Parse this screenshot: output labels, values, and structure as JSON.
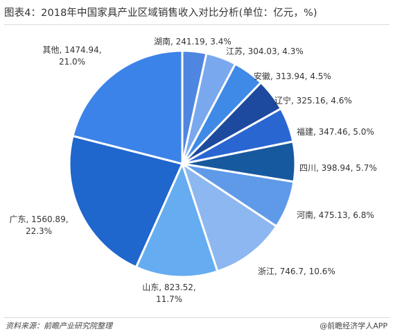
{
  "title": "图表4：2018年中国家具产业区域销售收入对比分析(单位：亿元，%)",
  "source": "资料来源：前瞻产业研究院整理",
  "brand": "@前瞻经济学人APP",
  "chart_data": {
    "type": "pie",
    "title": "图表4：2018年中国家具产业区域销售收入对比分析(单位：亿元，%)",
    "unit": "亿元",
    "start": "12 o'clock",
    "direction": "clockwise",
    "slices": [
      {
        "label": "湖南",
        "value": 241.19,
        "percent": "3.4%",
        "color": "#4f86e0"
      },
      {
        "label": "江苏",
        "value": 304.03,
        "percent": "4.3%",
        "color": "#7aa8ee"
      },
      {
        "label": "安徽",
        "value": 313.94,
        "percent": "4.5%",
        "color": "#3f8ae6"
      },
      {
        "label": "辽宁",
        "value": 325.16,
        "percent": "4.6%",
        "color": "#1d4a9e"
      },
      {
        "label": "福建",
        "value": 347.46,
        "percent": "5.0%",
        "color": "#2a66d2"
      },
      {
        "label": "四川",
        "value": 398.94,
        "percent": "5.7%",
        "color": "#17599e"
      },
      {
        "label": "河南",
        "value": 475.13,
        "percent": "6.8%",
        "color": "#5f9ae9"
      },
      {
        "label": "浙江",
        "value": 746.7,
        "percent": "10.6%",
        "color": "#8db7f0"
      },
      {
        "label": "山东",
        "value": 823.52,
        "percent": "11.7%",
        "color": "#66acf0"
      },
      {
        "label": "广东",
        "value": 1560.89,
        "percent": "22.3%",
        "color": "#1f66cd"
      },
      {
        "label": "其他",
        "value": 1474.94,
        "percent": "21.0%",
        "color": "#3b83e8"
      }
    ]
  }
}
